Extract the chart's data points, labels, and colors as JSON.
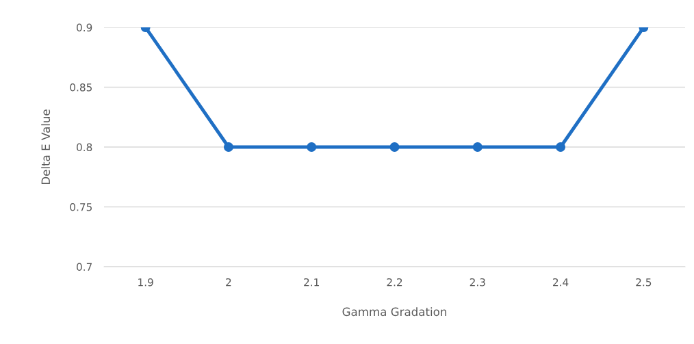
{
  "chart_data": {
    "type": "line",
    "xlabel": "Gamma Gradation",
    "ylabel": "Delta E Value",
    "categories": [
      "1.9",
      "2",
      "2.1",
      "2.2",
      "2.3",
      "2.4",
      "2.5"
    ],
    "series": [
      {
        "color": "#1f6fc4",
        "values": [
          0.9,
          0.8,
          0.8,
          0.8,
          0.8,
          0.8,
          0.9
        ]
      }
    ],
    "ylim": [
      0.7,
      0.9
    ],
    "yticks": [
      0.7,
      0.75,
      0.8,
      0.85,
      0.9
    ],
    "grid": "y",
    "marker": "circle",
    "line_style": "solid",
    "legend": false
  }
}
